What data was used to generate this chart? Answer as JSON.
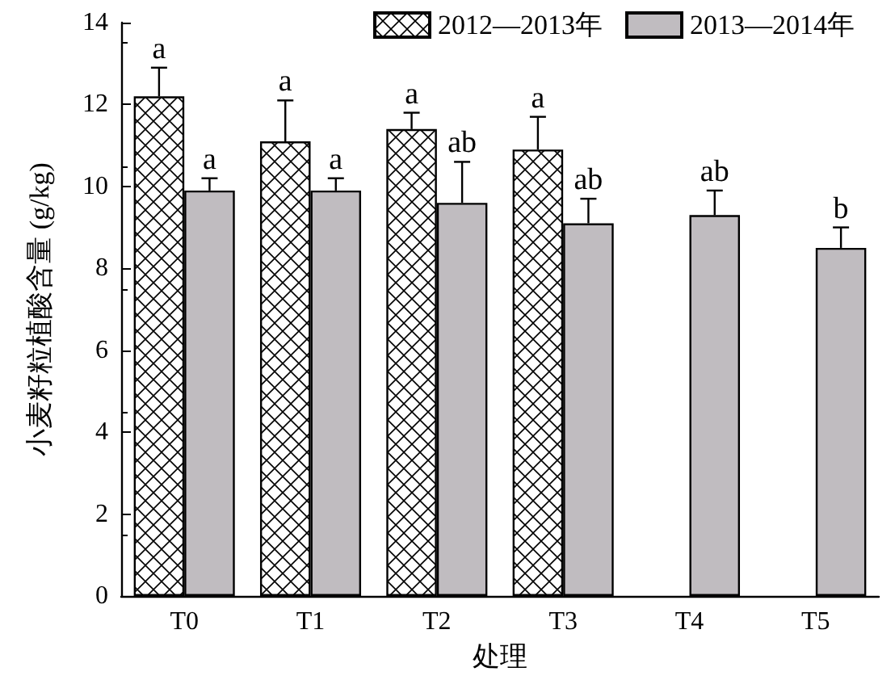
{
  "chart_data": {
    "type": "bar",
    "xlabel": "处理",
    "ylabel": "小麦籽粒植酸含量 (g/kg)",
    "categories": [
      "T0",
      "T1",
      "T2",
      "T3",
      "T4",
      "T5"
    ],
    "series": [
      {
        "name": "2012—2013年",
        "color": "#000000",
        "values": [
          12.2,
          11.1,
          11.4,
          10.9,
          null,
          null
        ],
        "errors": [
          0.7,
          1.0,
          0.4,
          0.8,
          null,
          null
        ],
        "value_labels": [
          "a",
          "a",
          "a",
          "a",
          null,
          null
        ]
      },
      {
        "name": "2013—2014年",
        "color": "#c0bcc0",
        "values": [
          9.9,
          9.9,
          9.6,
          9.1,
          9.3,
          8.5
        ],
        "errors": [
          0.3,
          0.3,
          1.0,
          0.6,
          0.6,
          0.5
        ],
        "value_labels": [
          "a",
          "a",
          "ab",
          "ab",
          "ab",
          "b"
        ]
      }
    ],
    "ylim": [
      0,
      14
    ],
    "yticks": [
      0,
      2,
      4,
      6,
      8,
      10,
      12,
      14
    ],
    "grid": false,
    "legend": "top right"
  }
}
